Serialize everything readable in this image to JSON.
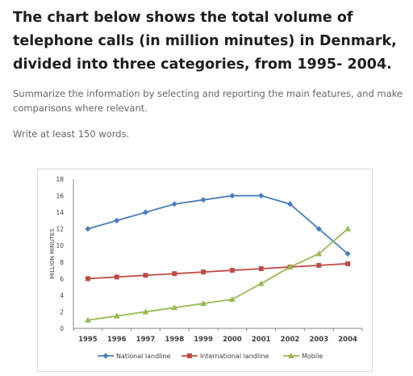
{
  "page": {
    "heading": "The chart below shows the total volume of telephone calls (in million minutes) in Denmark, divided into three categories, from 1995- 2004.",
    "instruction": "Summarize the information by selecting and reporting the main features, and make comparisons where relevant.",
    "word_count": "Write at least 150 words."
  },
  "chart_data": {
    "type": "line",
    "title": "",
    "xlabel": "",
    "ylabel": "MILLION MINUTES",
    "x": [
      "1995",
      "1996",
      "1997",
      "1998",
      "1999",
      "2000",
      "2001",
      "2002",
      "2003",
      "2004"
    ],
    "ylim": [
      0,
      18
    ],
    "yticks": [
      "0",
      "2",
      "4",
      "6",
      "8",
      "10",
      "12",
      "14",
      "16",
      "18"
    ],
    "grid": false,
    "legend_position": "bottom",
    "series": [
      {
        "name": "National landline",
        "color": "#4a7ebb",
        "marker": "diamond",
        "values": [
          12,
          13,
          14,
          15,
          15.5,
          16,
          16,
          15,
          12,
          9
        ]
      },
      {
        "name": "International landline",
        "color": "#be4b48",
        "marker": "square",
        "values": [
          6,
          6.2,
          6.4,
          6.6,
          6.8,
          7,
          7.2,
          7.4,
          7.6,
          7.8
        ]
      },
      {
        "name": "Mobile",
        "color": "#98b954",
        "marker": "triangle",
        "values": [
          1,
          1.5,
          2,
          2.5,
          3,
          3.5,
          5.4,
          7.4,
          9,
          12
        ]
      }
    ]
  }
}
